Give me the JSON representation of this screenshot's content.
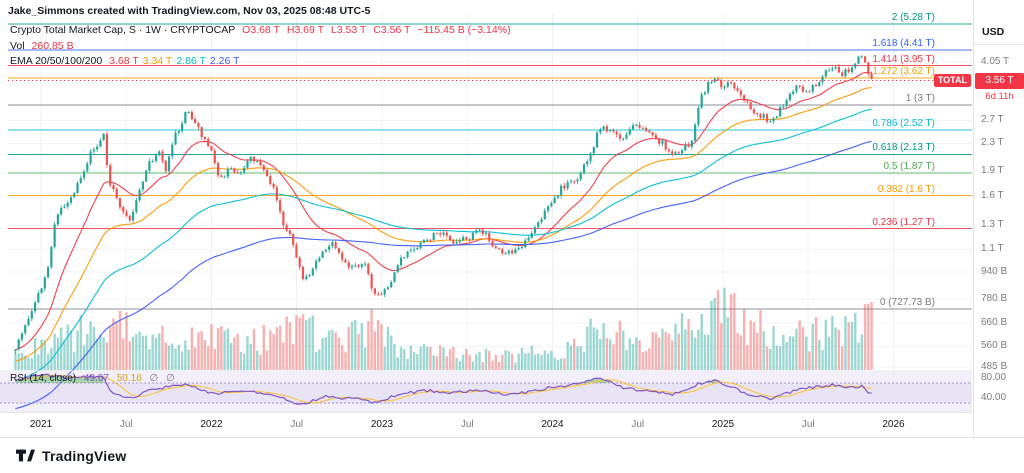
{
  "attribution": "Jake_Simmons created with TradingView.com, Nov 03, 2025 08:48 UTC-5",
  "legend": {
    "title": "Crypto Total Market Cap, S · 1W · CRYPTOCAP",
    "ohlc": {
      "o": "O3.68 T",
      "h": "H3.69 T",
      "l": "L3.53 T",
      "c": "C3.56 T",
      "change": "−115.45 B (−3.14%)"
    },
    "vol_label": "Vol",
    "vol_value": "260.85 B",
    "ema_label": "EMA 20/50/100/200",
    "ema_values": [
      {
        "text": "3.68 T",
        "color": "#f23645"
      },
      {
        "text": "3.34 T",
        "color": "#ff9800"
      },
      {
        "text": "2.86 T",
        "color": "#00bcd4"
      },
      {
        "text": "2.26 T",
        "color": "#3d5afe"
      }
    ]
  },
  "rsi_legend": {
    "title": "RSI (14, close)",
    "value1": "49.07",
    "value2": "50.16",
    "empty1": "∅",
    "empty2": "∅"
  },
  "price_axis": {
    "currency": "USD",
    "ticks": [
      {
        "v": 4050,
        "label": "4.05 T"
      },
      {
        "v": 2700,
        "label": "2.7 T"
      },
      {
        "v": 2300,
        "label": "2.3 T"
      },
      {
        "v": 1900,
        "label": "1.9 T"
      },
      {
        "v": 1600,
        "label": "1.6 T"
      },
      {
        "v": 1300,
        "label": "1.3 T"
      },
      {
        "v": 1100,
        "label": "1.1 T"
      },
      {
        "v": 940,
        "label": "940 B"
      },
      {
        "v": 780,
        "label": "780 B"
      },
      {
        "v": 660,
        "label": "660 B"
      },
      {
        "v": 560,
        "label": "560 B"
      },
      {
        "v": 485,
        "label": "485 B"
      }
    ],
    "rsi_ticks": [
      {
        "v": 80,
        "label": "80.00"
      },
      {
        "v": 40,
        "label": "40.00"
      }
    ]
  },
  "price_badge": {
    "symbol": "TOTAL",
    "price": "3.56 T",
    "countdown": "6d 11h",
    "value": 3560
  },
  "fib_levels": [
    {
      "text": "2 (5.28 T)",
      "v": 5280,
      "color": "#009688"
    },
    {
      "text": "1.618 (4.41 T)",
      "v": 4410,
      "color": "#2962ff"
    },
    {
      "text": "1.414 (3.95 T)",
      "v": 3950,
      "color": "#f23645"
    },
    {
      "text": "1.272 (3.62 T)",
      "v": 3620,
      "color": "#f0a000"
    },
    {
      "text": "1 (3 T)",
      "v": 3000,
      "color": "#787b86"
    },
    {
      "text": "0.786 (2.52 T)",
      "v": 2520,
      "color": "#00bcd4"
    },
    {
      "text": "0.618 (2.13 T)",
      "v": 2130,
      "color": "#009688"
    },
    {
      "text": "0.5 (1.87 T)",
      "v": 1870,
      "color": "#4caf50"
    },
    {
      "text": "0.382 (1.6 T)",
      "v": 1600,
      "color": "#ff9800"
    },
    {
      "text": "0.236 (1.27 T)",
      "v": 1270,
      "color": "#f23645"
    },
    {
      "text": "0 (727.73 B)",
      "v": 727.73,
      "color": "#787b86"
    }
  ],
  "time_axis": [
    {
      "label": "2021",
      "m": 0,
      "major": true
    },
    {
      "label": "Jul",
      "m": 6,
      "major": false
    },
    {
      "label": "2022",
      "m": 12,
      "major": true
    },
    {
      "label": "Jul",
      "m": 18,
      "major": false
    },
    {
      "label": "2023",
      "m": 24,
      "major": true
    },
    {
      "label": "Jul",
      "m": 30,
      "major": false
    },
    {
      "label": "2024",
      "m": 36,
      "major": true
    },
    {
      "label": "Jul",
      "m": 42,
      "major": false
    },
    {
      "label": "2025",
      "m": 48,
      "major": true
    },
    {
      "label": "Jul",
      "m": 54,
      "major": false
    },
    {
      "label": "2026",
      "m": 60,
      "major": true
    }
  ],
  "footer": {
    "brand": "TradingView"
  },
  "colors": {
    "up": "#26a69a",
    "down": "#ef5350",
    "volume_up": "rgba(38,166,154,0.45)",
    "volume_down": "rgba(239,83,80,0.45)",
    "ema": [
      "#f23645",
      "#ff9800",
      "#00bcd4",
      "#3d5afe"
    ],
    "rsi_line": "#7e57c2",
    "rsi_ma": "#fbc02d",
    "accent_red": "#f23645",
    "grid": "#eef0f5",
    "text_gray": "#787b86"
  },
  "chart_data": {
    "type": "candlestick+volume+rsi",
    "title": "Crypto Total Market Cap",
    "symbol": "CRYPTOCAP:TOTAL",
    "timeframe": "1W",
    "scale": "log",
    "units": "billions USD",
    "x_range": [
      "2020-11",
      "2026-01"
    ],
    "y_axis_billions": [
      460,
      5450
    ],
    "last_bar": {
      "open": 3680,
      "high": 3690,
      "low": 3530,
      "close": 3560,
      "change_b": -115.45,
      "change_pct": -3.14
    },
    "current_volume_b": 260.85,
    "ema_periods": [
      20,
      50,
      100,
      200
    ],
    "ema_current_b": {
      "ema20": 3680,
      "ema50": 3340,
      "ema100": 2860,
      "ema200": 2260
    },
    "fib_retracement": {
      "level_1_b": 3000,
      "level_0_b": 727.73
    },
    "rsi_current": 49.07,
    "price_anchors_month_value": [
      [
        -1.8,
        560
      ],
      [
        -1.2,
        640
      ],
      [
        -0.6,
        730
      ],
      [
        0,
        830
      ],
      [
        0.5,
        980
      ],
      [
        1,
        1330
      ],
      [
        1.5,
        1460
      ],
      [
        2,
        1520
      ],
      [
        2.5,
        1700
      ],
      [
        3,
        1850
      ],
      [
        3.5,
        2150
      ],
      [
        4,
        2250
      ],
      [
        4.4,
        2480
      ],
      [
        4.8,
        1750
      ],
      [
        5.2,
        1620
      ],
      [
        5.8,
        1430
      ],
      [
        6.3,
        1340
      ],
      [
        6.8,
        1580
      ],
      [
        7.5,
        1980
      ],
      [
        8.3,
        2150
      ],
      [
        8.8,
        1920
      ],
      [
        9.5,
        2450
      ],
      [
        10.3,
        2880
      ],
      [
        11,
        2560
      ],
      [
        11.8,
        2280
      ],
      [
        12.6,
        1800
      ],
      [
        13.3,
        1920
      ],
      [
        14,
        1870
      ],
      [
        14.8,
        2060
      ],
      [
        15.5,
        1950
      ],
      [
        16.3,
        1720
      ],
      [
        17,
        1330
      ],
      [
        17.6,
        1230
      ],
      [
        18.4,
        880
      ],
      [
        19,
        950
      ],
      [
        19.8,
        1090
      ],
      [
        20.5,
        1140
      ],
      [
        21.3,
        1010
      ],
      [
        22,
        960
      ],
      [
        22.8,
        990
      ],
      [
        23.4,
        800
      ],
      [
        24,
        815
      ],
      [
        24.6,
        860
      ],
      [
        25.2,
        1020
      ],
      [
        26,
        1080
      ],
      [
        27,
        1170
      ],
      [
        28,
        1240
      ],
      [
        29,
        1160
      ],
      [
        30,
        1180
      ],
      [
        31,
        1260
      ],
      [
        31.6,
        1160
      ],
      [
        32.6,
        1070
      ],
      [
        33.6,
        1090
      ],
      [
        34.6,
        1260
      ],
      [
        35.6,
        1450
      ],
      [
        36.6,
        1680
      ],
      [
        37.6,
        1760
      ],
      [
        38.6,
        2080
      ],
      [
        39.4,
        2620
      ],
      [
        40,
        2510
      ],
      [
        40.8,
        2360
      ],
      [
        41.5,
        2600
      ],
      [
        42.3,
        2540
      ],
      [
        43,
        2420
      ],
      [
        43.8,
        2290
      ],
      [
        44.5,
        2080
      ],
      [
        45.2,
        2240
      ],
      [
        45.8,
        2320
      ],
      [
        46.3,
        3050
      ],
      [
        46.9,
        3460
      ],
      [
        47.4,
        3620
      ],
      [
        47.9,
        3420
      ],
      [
        48.4,
        3520
      ],
      [
        48.9,
        3320
      ],
      [
        49.6,
        3080
      ],
      [
        50.2,
        2880
      ],
      [
        50.8,
        2780
      ],
      [
        51.3,
        2660
      ],
      [
        51.9,
        2870
      ],
      [
        52.6,
        3220
      ],
      [
        53.2,
        3420
      ],
      [
        53.9,
        3300
      ],
      [
        54.5,
        3440
      ],
      [
        55.1,
        3780
      ],
      [
        55.7,
        3920
      ],
      [
        56.3,
        3720
      ],
      [
        56.9,
        3860
      ],
      [
        57.4,
        4080
      ],
      [
        57.8,
        4180
      ],
      [
        58.1,
        3880
      ],
      [
        58.35,
        3560
      ]
    ],
    "volume_anchors_month_value": [
      [
        -1.8,
        80
      ],
      [
        0,
        130
      ],
      [
        2,
        170
      ],
      [
        4.4,
        265
      ],
      [
        5,
        280
      ],
      [
        7,
        150
      ],
      [
        10.3,
        185
      ],
      [
        12.6,
        170
      ],
      [
        15,
        150
      ],
      [
        17.6,
        230
      ],
      [
        18.4,
        265
      ],
      [
        20,
        140
      ],
      [
        23.4,
        225
      ],
      [
        25.2,
        110
      ],
      [
        28,
        90
      ],
      [
        31,
        85
      ],
      [
        33,
        75
      ],
      [
        35,
        95
      ],
      [
        37.6,
        125
      ],
      [
        39.4,
        255
      ],
      [
        41,
        165
      ],
      [
        43,
        140
      ],
      [
        44.5,
        180
      ],
      [
        46.3,
        265
      ],
      [
        47.4,
        285
      ],
      [
        48.5,
        345
      ],
      [
        49.6,
        265
      ],
      [
        51.3,
        225
      ],
      [
        53.2,
        185
      ],
      [
        55.1,
        215
      ],
      [
        56.9,
        195
      ],
      [
        57.8,
        305
      ],
      [
        58.35,
        261
      ]
    ],
    "rsi_anchors_month_value": [
      [
        -1.8,
        75
      ],
      [
        0,
        87
      ],
      [
        2,
        79
      ],
      [
        4.4,
        84
      ],
      [
        5,
        48
      ],
      [
        6.3,
        39
      ],
      [
        8,
        58
      ],
      [
        10.3,
        67
      ],
      [
        12,
        49
      ],
      [
        14.8,
        55
      ],
      [
        17,
        39
      ],
      [
        18.4,
        27
      ],
      [
        20,
        43
      ],
      [
        22,
        39
      ],
      [
        23.4,
        31
      ],
      [
        25.2,
        47
      ],
      [
        27,
        55
      ],
      [
        29,
        51
      ],
      [
        31,
        56
      ],
      [
        33,
        45
      ],
      [
        35,
        57
      ],
      [
        37.6,
        67
      ],
      [
        39.4,
        81
      ],
      [
        41,
        60
      ],
      [
        43,
        53
      ],
      [
        44.5,
        46
      ],
      [
        46.3,
        69
      ],
      [
        47.4,
        76
      ],
      [
        49.6,
        49
      ],
      [
        51.3,
        38
      ],
      [
        53.2,
        57
      ],
      [
        55.7,
        66
      ],
      [
        56.9,
        59
      ],
      [
        57.8,
        64
      ],
      [
        58.35,
        49
      ]
    ],
    "rsi_bands": [
      70,
      30
    ]
  }
}
